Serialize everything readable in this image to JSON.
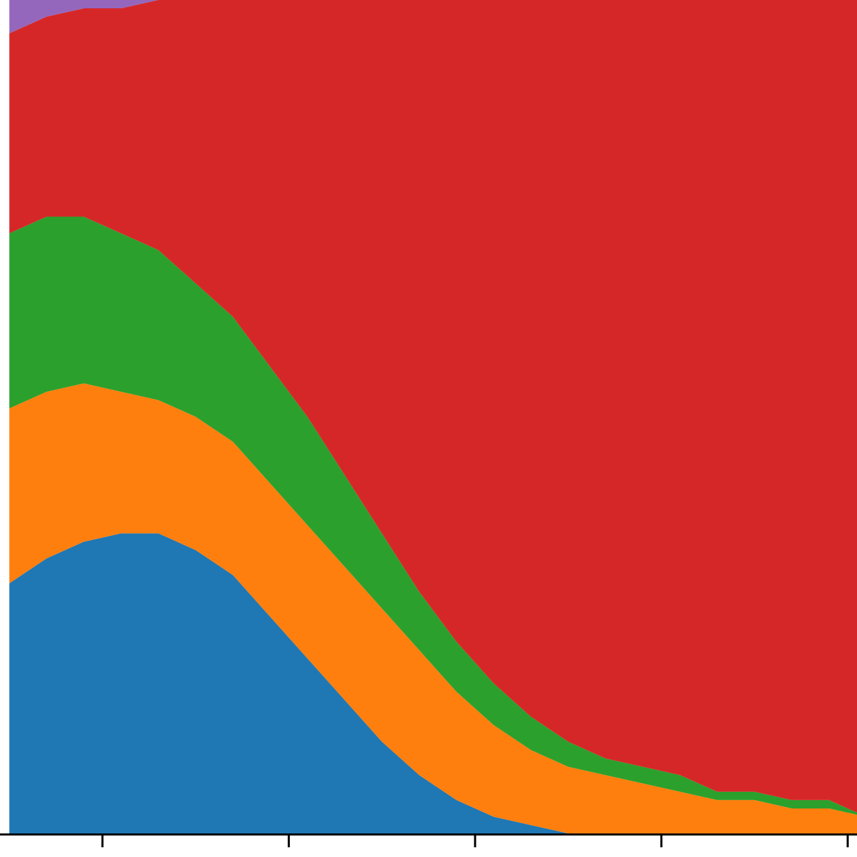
{
  "chart_data": {
    "type": "area",
    "stacked": true,
    "title": "",
    "xlabel": "",
    "ylabel": "",
    "x": [
      0.0,
      0.2,
      0.4,
      0.6,
      0.8,
      1.0,
      1.2,
      1.4,
      1.6,
      1.8,
      2.0,
      2.2,
      2.4,
      2.6,
      2.8,
      3.0,
      3.2,
      3.4,
      3.6,
      3.8,
      4.0,
      4.2,
      4.4,
      4.6,
      4.8,
      5.0
    ],
    "xlim": [
      -0.05,
      4.55
    ],
    "ylim": [
      0,
      1.0
    ],
    "xticks": [
      0.5,
      1.5,
      2.5,
      3.5,
      4.5
    ],
    "xtick_labels_visible": false,
    "colors": [
      "#1f77b4",
      "#ff7f0e",
      "#2ca02c",
      "#d62728",
      "#9467bd"
    ],
    "series": [
      {
        "values": [
          0.3,
          0.33,
          0.35,
          0.36,
          0.36,
          0.34,
          0.31,
          0.26,
          0.21,
          0.16,
          0.11,
          0.07,
          0.04,
          0.02,
          0.01,
          0.0,
          0.0,
          0.0,
          0.0,
          0.0,
          0.0,
          0.0,
          0.0,
          0.0,
          0.0,
          0.0
        ]
      },
      {
        "values": [
          0.21,
          0.2,
          0.19,
          0.17,
          0.16,
          0.16,
          0.16,
          0.16,
          0.16,
          0.16,
          0.16,
          0.15,
          0.13,
          0.11,
          0.09,
          0.08,
          0.07,
          0.06,
          0.05,
          0.04,
          0.04,
          0.03,
          0.03,
          0.02,
          0.02,
          0.02
        ]
      },
      {
        "values": [
          0.21,
          0.21,
          0.2,
          0.19,
          0.18,
          0.16,
          0.15,
          0.14,
          0.13,
          0.11,
          0.09,
          0.07,
          0.06,
          0.05,
          0.04,
          0.03,
          0.02,
          0.02,
          0.02,
          0.01,
          0.01,
          0.01,
          0.01,
          0.0,
          0.0,
          0.0
        ]
      },
      {
        "values": [
          0.24,
          0.24,
          0.25,
          0.27,
          0.3,
          0.34,
          0.38,
          0.44,
          0.5,
          0.57,
          0.64,
          0.71,
          0.77,
          0.82,
          0.86,
          0.89,
          0.91,
          0.92,
          0.93,
          0.95,
          0.95,
          0.96,
          0.96,
          0.98,
          0.98,
          0.98
        ]
      },
      {
        "values": [
          0.04,
          0.02,
          0.01,
          0.01,
          0.0,
          0.0,
          0.0,
          0.0,
          0.0,
          0.0,
          0.0,
          0.0,
          0.0,
          0.0,
          0.0,
          0.0,
          0.0,
          0.0,
          0.0,
          0.0,
          0.0,
          0.0,
          0.0,
          0.0,
          0.0,
          0.0
        ]
      }
    ]
  }
}
